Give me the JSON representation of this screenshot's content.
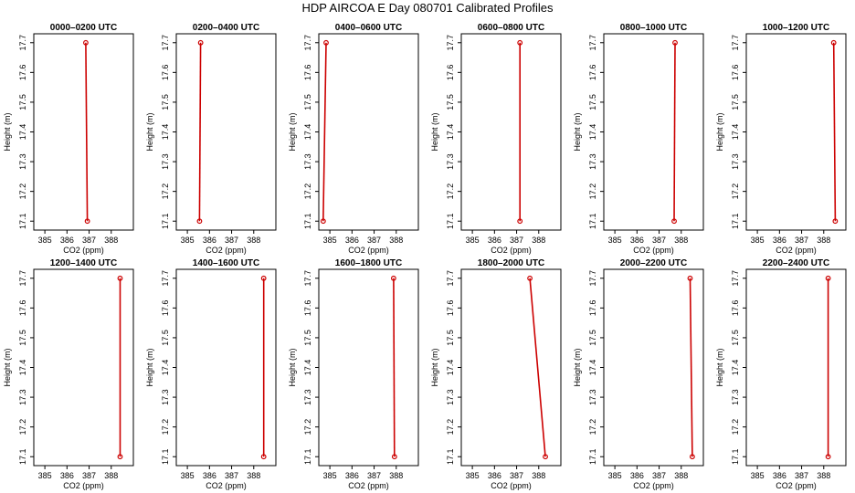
{
  "figure": {
    "title": "HDP AIRCOA E  Day 080701  Calibrated Profiles",
    "line_color": "#cc0000",
    "marker_color": "#cc0000",
    "axis_color": "#000000"
  },
  "chart_data": [
    {
      "type": "line",
      "title": "0000–0200 UTC",
      "xlabel": "CO2 (ppm)",
      "ylabel": "Height (m)",
      "xlim": [
        384.5,
        389.0
      ],
      "ylim": [
        17.07,
        17.73
      ],
      "xticks": [
        "385",
        "386",
        "387",
        "388"
      ],
      "yticks": [
        "17.1",
        "17.2",
        "17.3",
        "17.4",
        "17.5",
        "17.6",
        "17.7"
      ],
      "series": [
        {
          "x": [
            386.85,
            386.92
          ],
          "y": [
            17.7,
            17.1
          ]
        }
      ]
    },
    {
      "type": "line",
      "title": "0200–0400 UTC",
      "xlabel": "CO2 (ppm)",
      "ylabel": "Height (m)",
      "xlim": [
        384.5,
        389.0
      ],
      "ylim": [
        17.07,
        17.73
      ],
      "xticks": [
        "385",
        "386",
        "387",
        "388"
      ],
      "yticks": [
        "17.1",
        "17.2",
        "17.3",
        "17.4",
        "17.5",
        "17.6",
        "17.7"
      ],
      "series": [
        {
          "x": [
            385.6,
            385.55
          ],
          "y": [
            17.7,
            17.1
          ]
        }
      ]
    },
    {
      "type": "line",
      "title": "0400–0600 UTC",
      "xlabel": "CO2 (ppm)",
      "ylabel": "Height (m)",
      "xlim": [
        384.5,
        389.0
      ],
      "ylim": [
        17.07,
        17.73
      ],
      "xticks": [
        "385",
        "386",
        "387",
        "388"
      ],
      "yticks": [
        "17.1",
        "17.2",
        "17.3",
        "17.4",
        "17.5",
        "17.6",
        "17.7"
      ],
      "series": [
        {
          "x": [
            384.83,
            384.7
          ],
          "y": [
            17.7,
            17.1
          ]
        }
      ]
    },
    {
      "type": "line",
      "title": "0600–0800 UTC",
      "xlabel": "CO2 (ppm)",
      "ylabel": "Height (m)",
      "xlim": [
        384.5,
        389.0
      ],
      "ylim": [
        17.07,
        17.73
      ],
      "xticks": [
        "385",
        "386",
        "387",
        "388"
      ],
      "yticks": [
        "17.1",
        "17.2",
        "17.3",
        "17.4",
        "17.5",
        "17.6",
        "17.7"
      ],
      "series": [
        {
          "x": [
            387.15,
            387.15
          ],
          "y": [
            17.7,
            17.1
          ]
        }
      ]
    },
    {
      "type": "line",
      "title": "0800–1000 UTC",
      "xlabel": "CO2 (ppm)",
      "ylabel": "Height (m)",
      "xlim": [
        384.5,
        389.0
      ],
      "ylim": [
        17.07,
        17.73
      ],
      "xticks": [
        "385",
        "386",
        "387",
        "388"
      ],
      "yticks": [
        "17.1",
        "17.2",
        "17.3",
        "17.4",
        "17.5",
        "17.6",
        "17.7"
      ],
      "series": [
        {
          "x": [
            387.72,
            387.68
          ],
          "y": [
            17.7,
            17.1
          ]
        }
      ]
    },
    {
      "type": "line",
      "title": "1000–1200 UTC",
      "xlabel": "CO2 (ppm)",
      "ylabel": "Height (m)",
      "xlim": [
        384.5,
        389.0
      ],
      "ylim": [
        17.07,
        17.73
      ],
      "xticks": [
        "385",
        "386",
        "387",
        "388"
      ],
      "yticks": [
        "17.1",
        "17.2",
        "17.3",
        "17.4",
        "17.5",
        "17.6",
        "17.7"
      ],
      "series": [
        {
          "x": [
            388.45,
            388.52
          ],
          "y": [
            17.7,
            17.1
          ]
        }
      ]
    },
    {
      "type": "line",
      "title": "1200–1400 UTC",
      "xlabel": "CO2 (ppm)",
      "ylabel": "Height (m)",
      "xlim": [
        384.5,
        389.0
      ],
      "ylim": [
        17.07,
        17.73
      ],
      "xticks": [
        "385",
        "386",
        "387",
        "388"
      ],
      "yticks": [
        "17.1",
        "17.2",
        "17.3",
        "17.4",
        "17.5",
        "17.6",
        "17.7"
      ],
      "series": [
        {
          "x": [
            388.4,
            388.4
          ],
          "y": [
            17.7,
            17.1
          ]
        }
      ]
    },
    {
      "type": "line",
      "title": "1400–1600 UTC",
      "xlabel": "CO2 (ppm)",
      "ylabel": "Height (m)",
      "xlim": [
        384.5,
        389.0
      ],
      "ylim": [
        17.07,
        17.73
      ],
      "xticks": [
        "385",
        "386",
        "387",
        "388"
      ],
      "yticks": [
        "17.1",
        "17.2",
        "17.3",
        "17.4",
        "17.5",
        "17.6",
        "17.7"
      ],
      "series": [
        {
          "x": [
            388.45,
            388.45
          ],
          "y": [
            17.7,
            17.1
          ]
        }
      ]
    },
    {
      "type": "line",
      "title": "1600–1800 UTC",
      "xlabel": "CO2 (ppm)",
      "ylabel": "Height (m)",
      "xlim": [
        384.5,
        389.0
      ],
      "ylim": [
        17.07,
        17.73
      ],
      "xticks": [
        "385",
        "386",
        "387",
        "388"
      ],
      "yticks": [
        "17.1",
        "17.2",
        "17.3",
        "17.4",
        "17.5",
        "17.6",
        "17.7"
      ],
      "series": [
        {
          "x": [
            387.88,
            387.92
          ],
          "y": [
            17.7,
            17.1
          ]
        }
      ]
    },
    {
      "type": "line",
      "title": "1800–2000 UTC",
      "xlabel": "CO2 (ppm)",
      "ylabel": "Height (m)",
      "xlim": [
        384.5,
        389.0
      ],
      "ylim": [
        17.07,
        17.73
      ],
      "xticks": [
        "385",
        "386",
        "387",
        "388"
      ],
      "yticks": [
        "17.1",
        "17.2",
        "17.3",
        "17.4",
        "17.5",
        "17.6",
        "17.7"
      ],
      "series": [
        {
          "x": [
            387.6,
            388.3
          ],
          "y": [
            17.7,
            17.1
          ]
        }
      ]
    },
    {
      "type": "line",
      "title": "2000–2200 UTC",
      "xlabel": "CO2 (ppm)",
      "ylabel": "Height (m)",
      "xlim": [
        384.5,
        389.0
      ],
      "ylim": [
        17.07,
        17.73
      ],
      "xticks": [
        "385",
        "386",
        "387",
        "388"
      ],
      "yticks": [
        "17.1",
        "17.2",
        "17.3",
        "17.4",
        "17.5",
        "17.6",
        "17.7"
      ],
      "series": [
        {
          "x": [
            388.4,
            388.5
          ],
          "y": [
            17.7,
            17.1
          ]
        }
      ]
    },
    {
      "type": "line",
      "title": "2200–2400 UTC",
      "xlabel": "CO2 (ppm)",
      "ylabel": "Height (m)",
      "xlim": [
        384.5,
        389.0
      ],
      "ylim": [
        17.07,
        17.73
      ],
      "xticks": [
        "385",
        "386",
        "387",
        "388"
      ],
      "yticks": [
        "17.1",
        "17.2",
        "17.3",
        "17.4",
        "17.5",
        "17.6",
        "17.7"
      ],
      "series": [
        {
          "x": [
            388.2,
            388.2
          ],
          "y": [
            17.7,
            17.1
          ]
        }
      ]
    }
  ]
}
